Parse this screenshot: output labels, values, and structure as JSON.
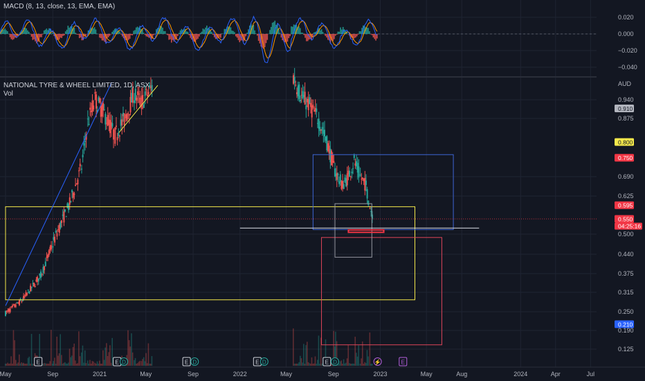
{
  "header": {
    "indicator": "MACD (8, 13, close, 13, EMA, EMA)",
    "symbol": "NATIONAL TYRE & WHEEL LIMITED, 1D, ASX",
    "volume_label": "Vol",
    "currency": "AUD"
  },
  "colors": {
    "background": "#131722",
    "up": "#26a69a",
    "down": "#ef5350",
    "macd_line": "#2962ff",
    "signal_line": "#ff9800",
    "yellow_box": "#f5e94b",
    "blue_box": "#3d66d6",
    "red_box": "#e0455a",
    "grey_box": "#9598a1"
  },
  "chart_data": {
    "type": "candlestick",
    "x_range": [
      "2020-05-01",
      "2024-07-31"
    ],
    "x_ticks": [
      "May",
      "Sep",
      "2021",
      "May",
      "Sep",
      "2022",
      "May",
      "Sep",
      "2023",
      "May",
      "Aug",
      "2024",
      "Apr",
      "Jul"
    ],
    "x_tick_dates": [
      "2020-05-01",
      "2020-09-01",
      "2021-01-01",
      "2021-05-01",
      "2021-09-01",
      "2022-01-01",
      "2022-05-01",
      "2022-09-01",
      "2023-01-01",
      "2023-05-01",
      "2023-08-01",
      "2024-01-01",
      "2024-04-01",
      "2024-07-01"
    ],
    "price_axis": {
      "ticks": [
        "0.940",
        "0.875",
        "0.690",
        "0.625",
        "0.500",
        "0.440",
        "0.375",
        "0.315",
        "0.250",
        "0.190",
        "0.125"
      ],
      "tick_values": [
        0.94,
        0.875,
        0.69,
        0.625,
        0.5,
        0.44,
        0.375,
        0.315,
        0.25,
        0.19,
        0.125
      ]
    },
    "price_tags": [
      {
        "text": "0.910",
        "value": 0.91,
        "bg": "#b2b5be",
        "fg": "#131722"
      },
      {
        "text": "0.800",
        "value": 0.8,
        "bg": "#f5e94b",
        "fg": "#131722"
      },
      {
        "text": "0.750",
        "value": 0.75,
        "bg": "#f23645",
        "fg": "#ffffff"
      },
      {
        "text": "0.595",
        "value": 0.595,
        "bg": "#f23645",
        "fg": "#ffffff"
      },
      {
        "text": "0.550",
        "value": 0.55,
        "bg": "#f23645",
        "fg": "#ffffff"
      },
      {
        "text": "0.210",
        "value": 0.21,
        "bg": "#2962ff",
        "fg": "#ffffff"
      }
    ],
    "countdown": "04:25:16",
    "macd_axis": {
      "ticks": [
        "0.020",
        "0.000",
        "−0.020",
        "−0.040"
      ],
      "tick_values": [
        0.02,
        0.0,
        -0.02,
        -0.04
      ]
    },
    "price_path": [
      [
        "2020-05-01",
        0.245
      ],
      [
        "2020-06-15",
        0.29
      ],
      [
        "2020-08-01",
        0.37
      ],
      [
        "2020-09-01",
        0.47
      ],
      [
        "2020-10-15",
        0.6
      ],
      [
        "2020-11-15",
        0.72
      ],
      [
        "2020-12-01",
        0.86
      ],
      [
        "2020-12-20",
        0.94
      ],
      [
        "2021-01-10",
        0.9
      ],
      [
        "2021-02-10",
        0.82
      ],
      [
        "2021-03-10",
        0.88
      ],
      [
        "2021-04-01",
        0.96
      ],
      [
        "2021-04-20",
        0.93
      ],
      [
        "2021-05-20",
        0.99
      ],
      [
        "2022-05-20",
        1.02
      ],
      [
        "2022-06-10",
        0.95
      ],
      [
        "2022-07-01",
        0.92
      ],
      [
        "2022-07-25",
        0.87
      ],
      [
        "2022-08-15",
        0.8
      ],
      [
        "2022-09-05",
        0.71
      ],
      [
        "2022-09-25",
        0.66
      ],
      [
        "2022-10-10",
        0.69
      ],
      [
        "2022-10-25",
        0.74
      ],
      [
        "2022-11-10",
        0.69
      ],
      [
        "2022-11-25",
        0.66
      ],
      [
        "2022-12-05",
        0.59
      ],
      [
        "2022-12-15",
        0.555
      ]
    ],
    "drawings": {
      "yellow_rect": {
        "x0": "2020-05-01",
        "x1": "2023-04-01",
        "y0": 0.29,
        "y1": 0.59
      },
      "blue_rect": {
        "x0": "2022-07-10",
        "x1": "2023-07-10",
        "y0": 0.515,
        "y1": 0.76
      },
      "red_rect": {
        "x0": "2022-08-01",
        "x1": "2023-06-10",
        "y0": 0.14,
        "y1": 0.49
      },
      "grey_rect": {
        "x0": "2022-09-05",
        "x1": "2022-12-10",
        "y0": 0.43,
        "y1": 0.6
      },
      "red_small_rect": {
        "x0": "2022-10-10",
        "x1": "2023-01-10",
        "y0": 0.506,
        "y1": 0.514
      },
      "white_hline": {
        "x0": "2022-01-01",
        "x1": "2023-09-15",
        "y": 0.52
      },
      "trendline": {
        "x0": "2020-05-01",
        "y0": 0.27,
        "x1": "2021-02-01",
        "y1": 1.0
      },
      "channel_line": {
        "x0": "2021-02-20",
        "y0": 0.83,
        "x1": "2021-06-01",
        "y1": 0.99
      },
      "dotted_price_line": {
        "y": 0.55
      }
    },
    "event_markers": [
      {
        "date": "2020-07-25",
        "letter": "E",
        "type": "earnings"
      },
      {
        "date": "2021-02-15",
        "letter": "E",
        "type": "earnings"
      },
      {
        "date": "2021-03-05",
        "letter": "D",
        "type": "dividend"
      },
      {
        "date": "2021-08-15",
        "letter": "E",
        "type": "earnings"
      },
      {
        "date": "2021-09-05",
        "letter": "D",
        "type": "dividend"
      },
      {
        "date": "2022-02-15",
        "letter": "E",
        "type": "earnings"
      },
      {
        "date": "2022-03-05",
        "letter": "D",
        "type": "dividend"
      },
      {
        "date": "2022-08-15",
        "letter": "E",
        "type": "earnings"
      },
      {
        "date": "2022-09-05",
        "letter": "D",
        "type": "dividend"
      },
      {
        "date": "2022-12-25",
        "letter": "⚡",
        "type": "split"
      },
      {
        "date": "2023-03-01",
        "letter": "E",
        "type": "earnings-upcoming"
      }
    ]
  }
}
